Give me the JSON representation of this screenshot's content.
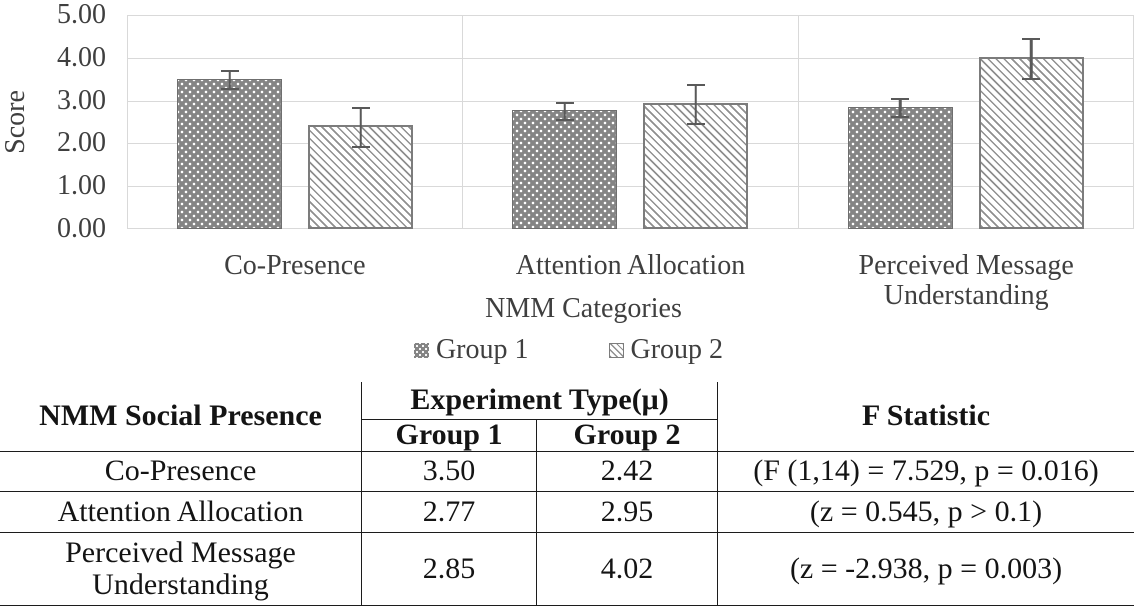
{
  "chart_data": {
    "type": "bar",
    "title": "",
    "categories": [
      "Co-Presence",
      "Attention Allocation",
      "Perceived Message Understanding"
    ],
    "series": [
      {
        "name": "Group 1",
        "values": [
          3.5,
          2.77,
          2.85
        ],
        "errors": [
          0.23,
          0.23,
          0.23
        ],
        "pattern": "white-dots-on-gray",
        "fill": "#858585"
      },
      {
        "name": "Group 2",
        "values": [
          2.42,
          2.95,
          4.02
        ],
        "errors": [
          0.47,
          0.48,
          0.48
        ],
        "pattern": "gray-diagonal-hatch-on-white",
        "fill": "#ffffff"
      }
    ],
    "xlabel": "NMM Categories",
    "ylabel": "Score",
    "ylim": [
      0,
      5
    ],
    "y_ticks": [
      "5.00",
      "4.00",
      "3.00",
      "2.00",
      "1.00",
      "0.00"
    ],
    "grid": true,
    "legend_position": "bottom",
    "colors": {
      "gridline": "#d9d9d9",
      "axis_text": "#3f3f3f",
      "error_bar": "#595959",
      "group1_fill": "#858585",
      "group2_border": "#7c7c7c"
    }
  },
  "table": {
    "col1_header": "NMM Social Presence",
    "group_header": "Experiment Type(μ)",
    "sub_headers": [
      "Group 1",
      "Group 2"
    ],
    "stat_header": "F Statistic",
    "rows": [
      {
        "name": "Co-Presence",
        "group1": "3.50",
        "group2": "2.42",
        "stat": "(F (1,14) = 7.529, p = 0.016)"
      },
      {
        "name": "Attention Allocation",
        "group1": "2.77",
        "group2": "2.95",
        "stat": "(z = 0.545, p > 0.1)"
      },
      {
        "name": "Perceived Message Understanding",
        "group1": "2.85",
        "group2": "4.02",
        "stat": "(z = -2.938, p = 0.003)"
      }
    ]
  }
}
